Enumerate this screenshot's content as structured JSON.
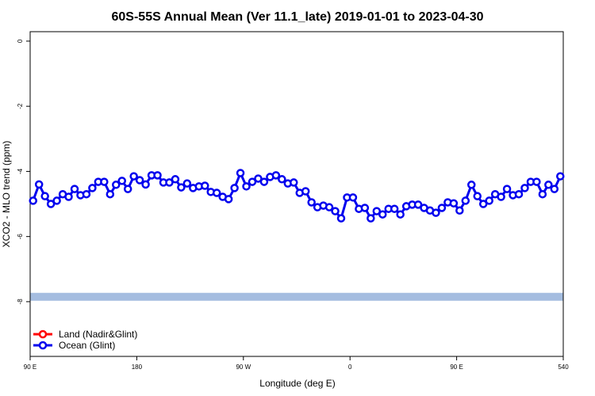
{
  "chart_data": {
    "type": "line",
    "title": "60S-55S Annual Mean (Ver 11.1_late)   2019-01-01 to 2023-04-30",
    "x_label": "Longitude (deg E)",
    "y_label": "XCO2 - MLO trend (ppm)",
    "xlim": [
      90,
      540
    ],
    "ylim": [
      -9.68,
      0.29
    ],
    "xticks": [
      {
        "value": 90,
        "label": "90 E"
      },
      180,
      {
        "value": 270,
        "label": "90 W"
      },
      {
        "value": 360,
        "label": "0"
      },
      {
        "value": 450,
        "label": "90 E"
      },
      540
    ],
    "yticks": [
      0,
      -2,
      -4,
      -6,
      -8
    ],
    "band": {
      "y": -7.85,
      "color": "#a5bde0"
    },
    "legend": "bottom-left",
    "x": [
      92.5,
      97.5,
      102.5,
      107.5,
      112.5,
      117.5,
      122.5,
      127.5,
      132.5,
      137.5,
      142.5,
      147.5,
      152.5,
      157.5,
      162.5,
      167.5,
      172.5,
      177.5,
      182.5,
      187.5,
      192.5,
      197.5,
      202.5,
      207.5,
      212.5,
      217.5,
      222.5,
      227.5,
      232.5,
      237.5,
      242.5,
      247.5,
      252.5,
      257.5,
      262.5,
      267.5,
      272.5,
      277.5,
      282.5,
      287.5,
      292.5,
      297.5,
      302.5,
      307.5,
      312.5,
      317.5,
      322.5,
      327.5,
      332.5,
      337.5,
      342.5,
      347.5,
      352.5,
      357.5,
      362.5,
      367.5,
      372.5,
      377.5,
      382.5,
      387.5,
      392.5,
      397.5,
      402.5,
      407.5,
      412.5,
      417.5,
      422.5,
      427.5,
      432.5,
      437.5,
      442.5,
      447.5,
      452.5,
      457.5,
      462.5,
      467.5,
      472.5,
      477.5,
      482.5,
      487.5,
      492.5,
      497.5,
      502.5,
      507.5,
      512.5,
      517.5,
      522.5,
      527.5,
      532.5,
      537.5
    ],
    "series": [
      {
        "name": "Land (Nadir&Glint)",
        "color": "#ff0000",
        "values": [
          null,
          null,
          null,
          null,
          null,
          null,
          null,
          null,
          null,
          null,
          null,
          null,
          null,
          null,
          null,
          null,
          null,
          null,
          null,
          null,
          null,
          null,
          null,
          null,
          null,
          null,
          null,
          null,
          null,
          null,
          null,
          null,
          null,
          null,
          null,
          null,
          null,
          null,
          null,
          null,
          null,
          null,
          null,
          null,
          null,
          null,
          null,
          null,
          null,
          null,
          null,
          null,
          null,
          null,
          null,
          null,
          null,
          null,
          null,
          null,
          null,
          null,
          null,
          null,
          null,
          null,
          null,
          null,
          null,
          null,
          null,
          null,
          null,
          null,
          null,
          null,
          null,
          null,
          null,
          null,
          null,
          null,
          null,
          null,
          null,
          null,
          null,
          null,
          null,
          null
        ]
      },
      {
        "name": "Ocean (Glint)",
        "color": "#0000ee",
        "values": [
          -4.9,
          -4.4,
          -4.76,
          -5.0,
          -4.9,
          -4.7,
          -4.78,
          -4.54,
          -4.73,
          -4.7,
          -4.51,
          -4.32,
          -4.32,
          -4.7,
          -4.41,
          -4.29,
          -4.54,
          -4.15,
          -4.27,
          -4.4,
          -4.12,
          -4.12,
          -4.34,
          -4.34,
          -4.24,
          -4.49,
          -4.37,
          -4.51,
          -4.46,
          -4.44,
          -4.63,
          -4.66,
          -4.78,
          -4.85,
          -4.51,
          -4.05,
          -4.46,
          -4.32,
          -4.22,
          -4.32,
          -4.17,
          -4.12,
          -4.24,
          -4.37,
          -4.34,
          -4.66,
          -4.61,
          -4.95,
          -5.1,
          -5.05,
          -5.1,
          -5.22,
          -5.44,
          -4.8,
          -4.8,
          -5.15,
          -5.12,
          -5.44,
          -5.22,
          -5.32,
          -5.15,
          -5.15,
          -5.32,
          -5.07,
          -5.02,
          -5.02,
          -5.12,
          -5.2,
          -5.27,
          -5.12,
          -4.95,
          -4.98,
          -5.2,
          -4.9,
          -4.41,
          -4.76,
          -5.0,
          -4.9,
          -4.7,
          -4.78,
          -4.54,
          -4.73,
          -4.7,
          -4.51,
          -4.32,
          -4.32,
          -4.7,
          -4.41,
          -4.54,
          -4.15
        ]
      }
    ]
  }
}
